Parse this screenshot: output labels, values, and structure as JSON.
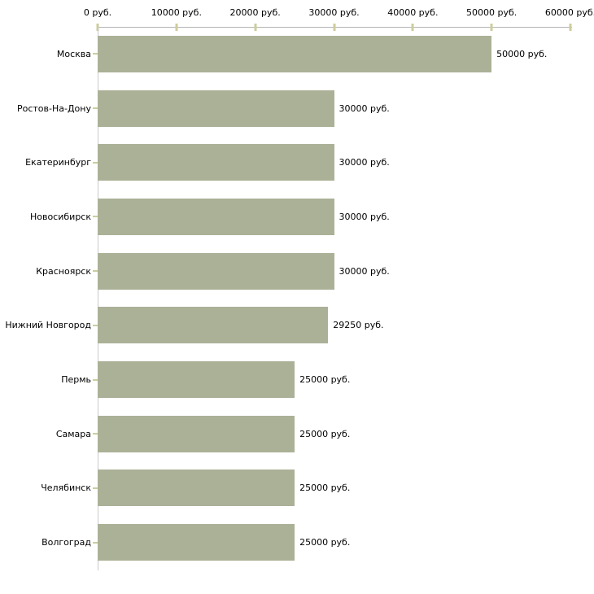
{
  "chart_data": {
    "type": "bar",
    "orientation": "horizontal",
    "title": "",
    "xlabel": "",
    "ylabel": "",
    "unit": "руб.",
    "xlim": [
      0,
      60000
    ],
    "grid": false,
    "legend": null,
    "categories": [
      "Москва",
      "Ростов-На-Дону",
      "Екатеринбург",
      "Новосибирск",
      "Красноярск",
      "Нижний Новгород",
      "Пермь",
      "Самара",
      "Челябинск",
      "Волгоград"
    ],
    "values": [
      50000,
      30000,
      30000,
      30000,
      30000,
      29250,
      25000,
      25000,
      25000,
      25000
    ],
    "value_labels": [
      "50000 руб.",
      "30000 руб.",
      "30000 руб.",
      "30000 руб.",
      "30000 руб.",
      "29250 руб.",
      "25000 руб.",
      "25000 руб.",
      "25000 руб.",
      "25000 руб."
    ],
    "x_ticks": [
      {
        "value": 0,
        "label": "0 руб."
      },
      {
        "value": 10000,
        "label": "10000 руб."
      },
      {
        "value": 20000,
        "label": "20000 руб."
      },
      {
        "value": 30000,
        "label": "30000 руб."
      },
      {
        "value": 40000,
        "label": "40000 руб."
      },
      {
        "value": 50000,
        "label": "50000 руб."
      },
      {
        "value": 60000,
        "label": "60000 руб."
      }
    ],
    "colors": {
      "bar": "#abb197",
      "axis_line": "#b5b5b5",
      "left_axis_line": "#c9c9c9",
      "tick_mark": "#cdcd9d",
      "text": "#000000",
      "background": "#ffffff"
    }
  }
}
